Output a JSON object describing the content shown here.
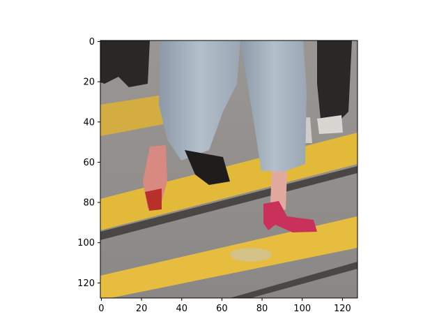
{
  "figure": {
    "type": "image",
    "image_description_icon": "photo-street-crosswalk-legs-red-heels",
    "colors": {
      "road": "#8f8c8a",
      "stripe": "#e3b93a",
      "jeans": "#a9b4c0",
      "heel": "#c9305a",
      "dark": "#2a2726",
      "axis": "#000000"
    },
    "x_ticks": [
      "0",
      "20",
      "40",
      "60",
      "80",
      "100",
      "120"
    ],
    "y_ticks": [
      "0",
      "20",
      "40",
      "60",
      "80",
      "100",
      "120"
    ],
    "x_tick_values": [
      0,
      20,
      40,
      60,
      80,
      100,
      120
    ],
    "y_tick_values": [
      0,
      20,
      40,
      60,
      80,
      100,
      120
    ],
    "xlim": [
      -0.5,
      127.5
    ],
    "ylim": [
      127.5,
      -0.5
    ]
  }
}
